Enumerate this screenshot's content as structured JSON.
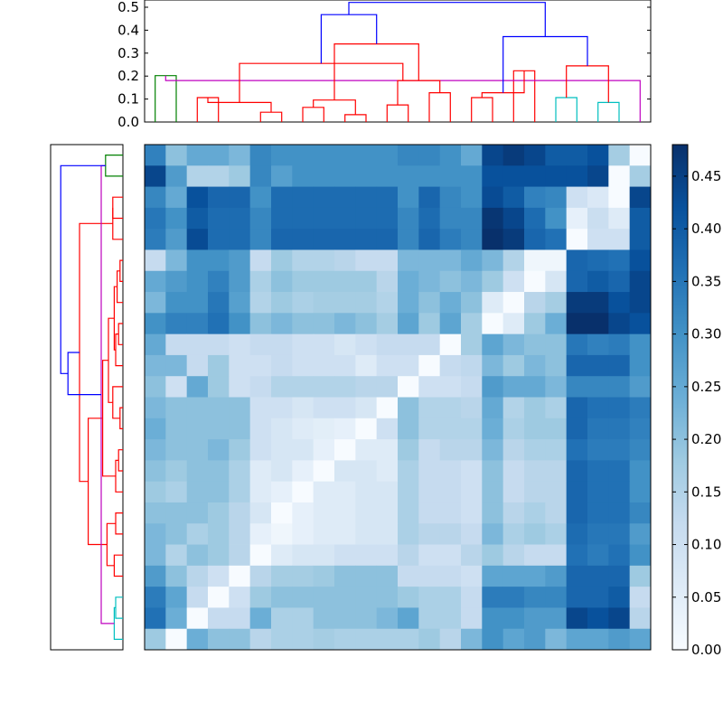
{
  "colors": {
    "upper_link": "#0000ff",
    "clusters": [
      "#ff0000",
      "#008000",
      "#00bfbf",
      "#bf00bf"
    ],
    "colormap": "Blues"
  },
  "chart_data": [
    {
      "type": "dendrogram",
      "orientation": "top",
      "ylim": [
        0,
        0.5
      ],
      "y_ticks": [
        "0.0",
        "0.1",
        "0.2",
        "0.3",
        "0.4",
        "0.5"
      ],
      "leaf_count": 24,
      "links": [
        {
          "left": 0,
          "right": 1,
          "height": 0.19,
          "color": "green"
        },
        {
          "left": 2,
          "right": 3,
          "height": 0.1,
          "color": "red"
        },
        {
          "left": 5,
          "right": 6,
          "height": 0.04,
          "color": "red"
        },
        {
          "left": 9,
          "right": 10,
          "height": 0.03,
          "color": "red"
        },
        {
          "left": 7,
          "right": 8,
          "height": 0.06,
          "color": "red"
        },
        {
          "left": 11,
          "right": 12,
          "height": 0.07,
          "color": "red"
        },
        {
          "left": 13,
          "right": 14,
          "height": 0.12,
          "color": "red"
        },
        {
          "left": 15,
          "right": 16,
          "height": 0.1,
          "color": "red"
        },
        {
          "left": 17,
          "right": 18,
          "height": 0.21,
          "color": "red"
        },
        {
          "left": 19,
          "right": 20,
          "height": 0.1,
          "color": "cyan"
        },
        {
          "left": 21,
          "right": 22,
          "height": 0.08,
          "color": "cyan"
        },
        {
          "left": 23,
          "right": 24,
          "height": 0.17,
          "color": "magenta"
        },
        {
          "left": 25,
          "right": 26,
          "height": 0.08,
          "color": "red"
        },
        {
          "left": 27,
          "right": 28,
          "height": 0.09,
          "color": "red"
        },
        {
          "left": 29,
          "right": 30,
          "height": 0.17,
          "color": "red"
        },
        {
          "left": 31,
          "right": 32,
          "height": 0.12,
          "color": "red"
        },
        {
          "left": 33,
          "right": 34,
          "height": 0.23,
          "color": "red"
        },
        {
          "left": 35,
          "right": 36,
          "height": 0.24,
          "color": "red"
        },
        {
          "left": 37,
          "right": 38,
          "height": 0.32,
          "color": "red"
        },
        {
          "left": 39,
          "right": 40,
          "height": 0.35,
          "color": "blue"
        },
        {
          "left": 41,
          "right": 42,
          "height": 0.44,
          "color": "blue"
        },
        {
          "left": 43,
          "right": 44,
          "height": 0.49,
          "color": "blue"
        }
      ]
    },
    {
      "type": "dendrogram",
      "orientation": "left",
      "leaf_count": 24,
      "links": [
        {
          "left": 0,
          "right": 1,
          "height": 0.12,
          "color": "green"
        },
        {
          "left": 2,
          "right": 3,
          "height": 0.07,
          "color": "red"
        },
        {
          "left": 4,
          "right": 25,
          "height": 0.07,
          "color": "red"
        },
        {
          "left": 5,
          "right": 6,
          "height": 0.02,
          "color": "red"
        },
        {
          "left": 7,
          "right": 27,
          "height": 0.04,
          "color": "red"
        },
        {
          "left": 8,
          "right": 9,
          "height": 0.03,
          "color": "red"
        },
        {
          "left": 10,
          "right": 29,
          "height": 0.05,
          "color": "red"
        },
        {
          "left": 28,
          "right": 30,
          "height": 0.06,
          "color": "red"
        },
        {
          "left": 12,
          "right": 13,
          "height": 0.02,
          "color": "red"
        },
        {
          "left": 11,
          "right": 32,
          "height": 0.07,
          "color": "red"
        },
        {
          "left": 31,
          "right": 33,
          "height": 0.1,
          "color": "red"
        },
        {
          "left": 14,
          "right": 15,
          "height": 0.03,
          "color": "red"
        },
        {
          "left": 35,
          "right": 16,
          "height": 0.05,
          "color": "red"
        },
        {
          "left": 34,
          "right": 36,
          "height": 0.14,
          "color": "red"
        },
        {
          "left": 17,
          "right": 18,
          "height": 0.05,
          "color": "red"
        },
        {
          "left": 19,
          "right": 20,
          "height": 0.06,
          "color": "red"
        },
        {
          "left": 38,
          "right": 39,
          "height": 0.11,
          "color": "red"
        },
        {
          "left": 37,
          "right": 40,
          "height": 0.24,
          "color": "red"
        },
        {
          "left": 26,
          "right": 41,
          "height": 0.3,
          "color": "red"
        },
        {
          "left": 21,
          "right": 22,
          "height": 0.05,
          "color": "cyan"
        },
        {
          "left": 43,
          "right": 23,
          "height": 0.06,
          "color": "cyan"
        },
        {
          "left": 24,
          "right": 44,
          "height": 0.15,
          "color": "magenta"
        },
        {
          "left": 42,
          "right": 45,
          "height": 0.38,
          "color": "blue"
        },
        {
          "left": 46,
          "right": 24,
          "height": 0.43,
          "color": "blue"
        }
      ]
    },
    {
      "type": "heatmap",
      "rows": 24,
      "cols": 24,
      "zlim": [
        0,
        0.48
      ],
      "colorbar_ticks": [
        "0.00",
        "0.05",
        "0.10",
        "0.15",
        "0.20",
        "0.25",
        "0.30",
        "0.35",
        "0.40",
        "0.45"
      ],
      "values": [
        [
          0.33,
          0.2,
          0.25,
          0.25,
          0.22,
          0.32,
          0.3,
          0.3,
          0.3,
          0.3,
          0.3,
          0.3,
          0.32,
          0.32,
          0.3,
          0.25,
          0.44,
          0.46,
          0.44,
          0.4,
          0.4,
          0.42,
          0.17,
          0.0
        ],
        [
          0.44,
          0.28,
          0.15,
          0.15,
          0.18,
          0.32,
          0.27,
          0.3,
          0.3,
          0.3,
          0.3,
          0.3,
          0.3,
          0.3,
          0.3,
          0.3,
          0.42,
          0.42,
          0.42,
          0.42,
          0.42,
          0.44,
          0.0,
          0.17
        ],
        [
          0.32,
          0.25,
          0.42,
          0.38,
          0.38,
          0.3,
          0.37,
          0.37,
          0.37,
          0.37,
          0.37,
          0.37,
          0.3,
          0.38,
          0.32,
          0.3,
          0.43,
          0.4,
          0.33,
          0.32,
          0.1,
          0.07,
          0.0,
          0.44
        ],
        [
          0.35,
          0.3,
          0.4,
          0.37,
          0.37,
          0.32,
          0.37,
          0.37,
          0.37,
          0.37,
          0.37,
          0.37,
          0.32,
          0.37,
          0.32,
          0.32,
          0.47,
          0.44,
          0.37,
          0.3,
          0.04,
          0.11,
          0.06,
          0.4
        ],
        [
          0.34,
          0.28,
          0.43,
          0.37,
          0.37,
          0.32,
          0.38,
          0.38,
          0.38,
          0.38,
          0.38,
          0.38,
          0.32,
          0.38,
          0.34,
          0.32,
          0.48,
          0.46,
          0.38,
          0.36,
          0.0,
          0.1,
          0.1,
          0.4
        ],
        [
          0.12,
          0.22,
          0.3,
          0.3,
          0.28,
          0.12,
          0.18,
          0.15,
          0.15,
          0.14,
          0.12,
          0.12,
          0.22,
          0.22,
          0.22,
          0.25,
          0.22,
          0.15,
          0.02,
          0.02,
          0.38,
          0.37,
          0.36,
          0.42
        ],
        [
          0.25,
          0.28,
          0.3,
          0.33,
          0.28,
          0.16,
          0.2,
          0.18,
          0.18,
          0.18,
          0.18,
          0.14,
          0.24,
          0.22,
          0.2,
          0.22,
          0.18,
          0.1,
          0.0,
          0.08,
          0.38,
          0.4,
          0.38,
          0.44
        ],
        [
          0.22,
          0.3,
          0.3,
          0.35,
          0.27,
          0.15,
          0.18,
          0.16,
          0.17,
          0.17,
          0.17,
          0.15,
          0.24,
          0.2,
          0.24,
          0.2,
          0.06,
          0.0,
          0.14,
          0.17,
          0.46,
          0.46,
          0.42,
          0.44
        ],
        [
          0.3,
          0.33,
          0.33,
          0.36,
          0.3,
          0.2,
          0.22,
          0.2,
          0.2,
          0.22,
          0.2,
          0.17,
          0.26,
          0.18,
          0.26,
          0.17,
          0.0,
          0.06,
          0.18,
          0.24,
          0.48,
          0.48,
          0.44,
          0.42
        ],
        [
          0.25,
          0.12,
          0.12,
          0.12,
          0.1,
          0.12,
          0.12,
          0.1,
          0.1,
          0.08,
          0.1,
          0.12,
          0.12,
          0.12,
          0.0,
          0.17,
          0.26,
          0.22,
          0.2,
          0.2,
          0.35,
          0.33,
          0.34,
          0.3
        ],
        [
          0.22,
          0.22,
          0.12,
          0.18,
          0.1,
          0.1,
          0.12,
          0.1,
          0.1,
          0.1,
          0.06,
          0.1,
          0.1,
          0.0,
          0.12,
          0.13,
          0.22,
          0.18,
          0.22,
          0.2,
          0.38,
          0.38,
          0.38,
          0.3
        ],
        [
          0.2,
          0.1,
          0.25,
          0.18,
          0.1,
          0.12,
          0.15,
          0.15,
          0.15,
          0.15,
          0.14,
          0.14,
          0.0,
          0.1,
          0.1,
          0.12,
          0.28,
          0.25,
          0.25,
          0.22,
          0.32,
          0.32,
          0.32,
          0.28
        ],
        [
          0.22,
          0.2,
          0.2,
          0.2,
          0.2,
          0.1,
          0.1,
          0.08,
          0.1,
          0.1,
          0.08,
          0.0,
          0.2,
          0.15,
          0.15,
          0.14,
          0.25,
          0.15,
          0.18,
          0.16,
          0.38,
          0.36,
          0.36,
          0.34
        ],
        [
          0.24,
          0.2,
          0.2,
          0.2,
          0.2,
          0.1,
          0.08,
          0.06,
          0.05,
          0.04,
          0.0,
          0.1,
          0.2,
          0.15,
          0.15,
          0.15,
          0.24,
          0.16,
          0.18,
          0.18,
          0.38,
          0.35,
          0.35,
          0.33
        ],
        [
          0.22,
          0.2,
          0.2,
          0.22,
          0.18,
          0.1,
          0.08,
          0.08,
          0.04,
          0.0,
          0.06,
          0.06,
          0.18,
          0.12,
          0.14,
          0.14,
          0.22,
          0.14,
          0.16,
          0.16,
          0.36,
          0.34,
          0.34,
          0.32
        ],
        [
          0.2,
          0.18,
          0.2,
          0.2,
          0.16,
          0.06,
          0.08,
          0.04,
          0.0,
          0.08,
          0.08,
          0.06,
          0.16,
          0.12,
          0.12,
          0.1,
          0.2,
          0.12,
          0.14,
          0.14,
          0.38,
          0.36,
          0.36,
          0.3
        ],
        [
          0.18,
          0.16,
          0.2,
          0.2,
          0.16,
          0.06,
          0.04,
          0.0,
          0.06,
          0.06,
          0.08,
          0.08,
          0.16,
          0.12,
          0.12,
          0.1,
          0.2,
          0.12,
          0.14,
          0.14,
          0.38,
          0.36,
          0.36,
          0.3
        ],
        [
          0.2,
          0.2,
          0.2,
          0.18,
          0.14,
          0.08,
          0.0,
          0.04,
          0.06,
          0.06,
          0.08,
          0.08,
          0.16,
          0.12,
          0.12,
          0.1,
          0.2,
          0.14,
          0.16,
          0.14,
          0.38,
          0.36,
          0.36,
          0.32
        ],
        [
          0.22,
          0.2,
          0.16,
          0.18,
          0.14,
          0.04,
          0.02,
          0.04,
          0.06,
          0.06,
          0.08,
          0.08,
          0.16,
          0.14,
          0.14,
          0.12,
          0.22,
          0.16,
          0.18,
          0.16,
          0.37,
          0.35,
          0.35,
          0.28
        ],
        [
          0.22,
          0.15,
          0.2,
          0.18,
          0.14,
          0.0,
          0.06,
          0.08,
          0.08,
          0.1,
          0.1,
          0.1,
          0.14,
          0.1,
          0.1,
          0.14,
          0.18,
          0.14,
          0.12,
          0.12,
          0.36,
          0.34,
          0.36,
          0.3
        ],
        [
          0.28,
          0.2,
          0.14,
          0.1,
          0.0,
          0.14,
          0.17,
          0.17,
          0.18,
          0.2,
          0.2,
          0.2,
          0.12,
          0.12,
          0.12,
          0.1,
          0.26,
          0.26,
          0.26,
          0.28,
          0.38,
          0.38,
          0.38,
          0.18
        ],
        [
          0.34,
          0.26,
          0.12,
          0.0,
          0.1,
          0.18,
          0.2,
          0.2,
          0.2,
          0.2,
          0.2,
          0.2,
          0.18,
          0.16,
          0.16,
          0.12,
          0.34,
          0.34,
          0.32,
          0.32,
          0.38,
          0.38,
          0.4,
          0.12
        ],
        [
          0.36,
          0.24,
          0.0,
          0.12,
          0.12,
          0.24,
          0.16,
          0.16,
          0.2,
          0.2,
          0.2,
          0.22,
          0.26,
          0.16,
          0.16,
          0.12,
          0.3,
          0.3,
          0.28,
          0.28,
          0.44,
          0.42,
          0.44,
          0.14
        ],
        [
          0.18,
          0.0,
          0.24,
          0.2,
          0.2,
          0.14,
          0.16,
          0.16,
          0.17,
          0.16,
          0.16,
          0.16,
          0.16,
          0.18,
          0.14,
          0.22,
          0.3,
          0.26,
          0.28,
          0.22,
          0.26,
          0.26,
          0.28,
          0.26
        ]
      ]
    }
  ]
}
